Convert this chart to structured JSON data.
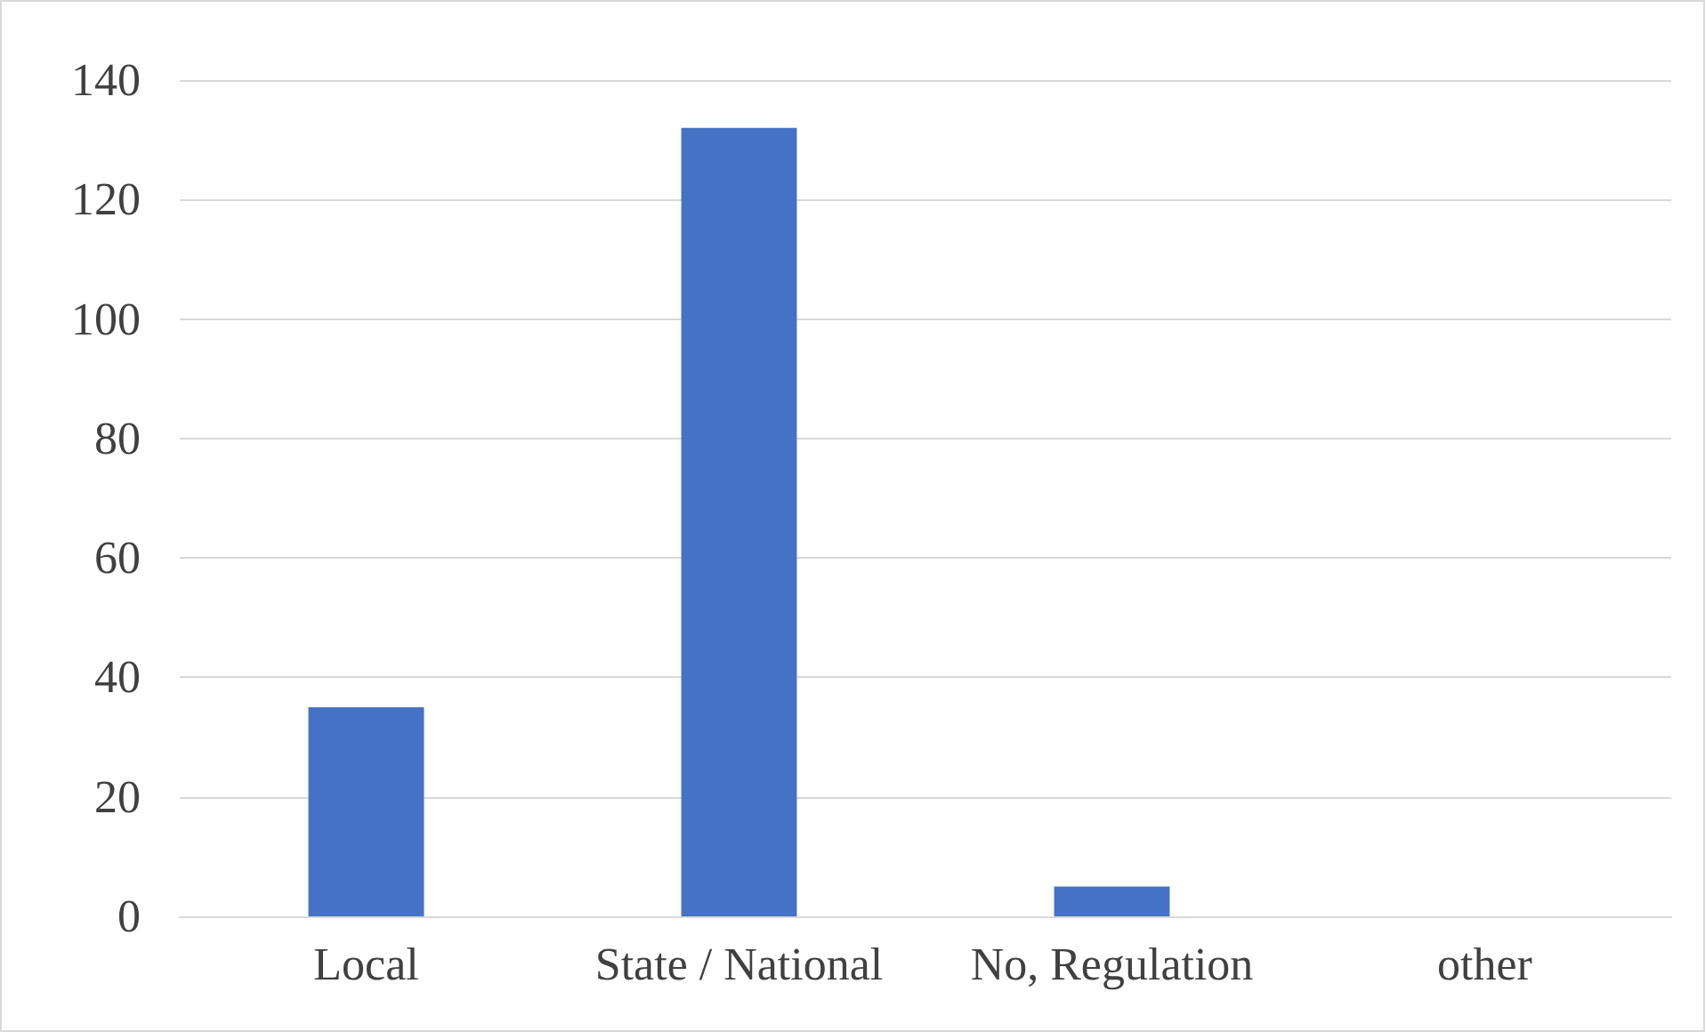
{
  "chart_data": {
    "type": "bar",
    "categories": [
      "Local",
      "State / National",
      "No, Regulation",
      "other"
    ],
    "values": [
      35,
      132,
      5,
      0
    ],
    "color": "#4472c4",
    "ylim": [
      0,
      140
    ],
    "yticks": [
      0,
      20,
      40,
      60,
      80,
      100,
      120,
      140
    ],
    "grid": "y"
  }
}
